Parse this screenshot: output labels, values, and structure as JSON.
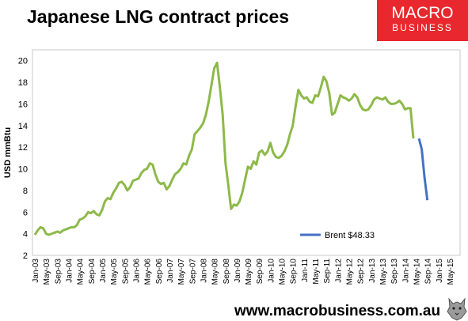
{
  "title": "Japanese LNG contract prices",
  "brand": {
    "line1": "MACRO",
    "line2": "BUSINESS",
    "color": "#e8282e"
  },
  "url": "www.macrobusiness.com.au",
  "chart_data": {
    "type": "line",
    "ylabel": "USD mmBtu",
    "ylim": [
      2,
      21
    ],
    "yticks": [
      2,
      4,
      6,
      8,
      10,
      12,
      14,
      16,
      18,
      20
    ],
    "xticks": [
      "Jan-03",
      "May-03",
      "Sep-03",
      "Jan-04",
      "May-04",
      "Sep-04",
      "Jan-05",
      "May-05",
      "Sep-05",
      "Jan-06",
      "May-06",
      "Sep-06",
      "Jan-07",
      "May-07",
      "Sep-07",
      "Jan-08",
      "May-08",
      "Sep-08",
      "Jan-09",
      "May-09",
      "Sep-09",
      "Jan-10",
      "May-10",
      "Sep-10",
      "Jan-11",
      "May-11",
      "Sep-11",
      "Jan-12",
      "May-12",
      "Sep-12",
      "Jan-13",
      "May-13",
      "Sep-13",
      "Jan-14",
      "May-14",
      "Sep-14",
      "Jan-15",
      "May-15"
    ],
    "grid": false,
    "legend_position": "bottom-right",
    "series": [
      {
        "color": "#8db94a",
        "values": [
          3.9,
          4.3,
          4.6,
          4.5,
          4.0,
          3.9,
          4.0,
          4.1,
          4.2,
          4.1,
          4.3,
          4.4,
          4.5,
          4.6,
          4.6,
          4.8,
          5.3,
          5.4,
          5.6,
          6.0,
          5.9,
          6.1,
          5.8,
          5.7,
          6.2,
          7.0,
          7.3,
          7.2,
          7.8,
          8.2,
          8.7,
          8.8,
          8.5,
          8.0,
          8.3,
          8.9,
          9.0,
          9.1,
          9.6,
          9.9,
          10.0,
          10.5,
          10.4,
          9.5,
          8.8,
          8.6,
          8.7,
          8.1,
          8.4,
          9.0,
          9.5,
          9.7,
          10.0,
          10.5,
          10.4,
          11.2,
          11.8,
          13.2,
          13.5,
          13.8,
          14.2,
          15.0,
          16.2,
          17.8,
          19.3,
          19.8,
          17.5,
          15.0,
          10.5,
          8.5,
          6.3,
          6.7,
          6.6,
          7.0,
          7.8,
          9.0,
          10.2,
          10.0,
          10.7,
          10.4,
          11.5,
          11.7,
          11.3,
          11.6,
          12.4,
          11.5,
          11.1,
          11.0,
          11.2,
          11.6,
          12.2,
          13.2,
          14.0,
          15.8,
          17.3,
          16.8,
          16.5,
          16.6,
          16.2,
          16.1,
          16.8,
          16.7,
          17.5,
          18.5,
          18.1,
          17.0,
          15.0,
          15.2,
          16.0,
          16.8,
          16.6,
          16.5,
          16.3,
          16.5,
          16.9,
          16.6,
          15.9,
          15.5,
          15.4,
          15.5,
          15.9,
          16.4,
          16.6,
          16.5,
          16.4,
          16.6,
          16.2,
          16.0,
          16.0,
          16.1,
          16.3,
          16.0,
          15.5,
          15.6,
          15.6,
          12.8
        ]
      },
      {
        "name": "Brent $48.33",
        "color": "#4472c4",
        "start_index": 137,
        "values": [
          12.8,
          11.8,
          9.2,
          7.1
        ]
      }
    ]
  }
}
